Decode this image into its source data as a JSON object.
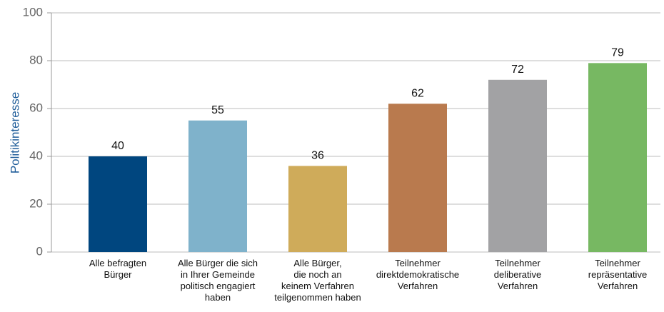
{
  "chart_data": {
    "type": "bar",
    "y_label": "Politikinteresse",
    "categories": [
      [
        "Alle befragten",
        "Bürger"
      ],
      [
        "Alle Bürger die sich",
        "in Ihrer Gemeinde",
        "politisch engagiert",
        "haben"
      ],
      [
        "Alle Bürger,",
        "die noch an",
        "keinem Verfahren",
        "teilgenommen haben"
      ],
      [
        "Teilnehmer",
        "direktdemokratische",
        "Verfahren"
      ],
      [
        "Teilnehmer",
        "deliberative",
        "Verfahren"
      ],
      [
        "Teilnehmer",
        "repräsentative",
        "Verfahren"
      ]
    ],
    "values": [
      40,
      55,
      36,
      62,
      72,
      79
    ],
    "colors": [
      "#00467f",
      "#7fb2cb",
      "#cfab5a",
      "#b97a4e",
      "#a2a2a4",
      "#77b862"
    ],
    "ylim": [
      0,
      100
    ],
    "yticks": [
      0,
      20,
      40,
      60,
      80,
      100
    ],
    "grid": true
  }
}
